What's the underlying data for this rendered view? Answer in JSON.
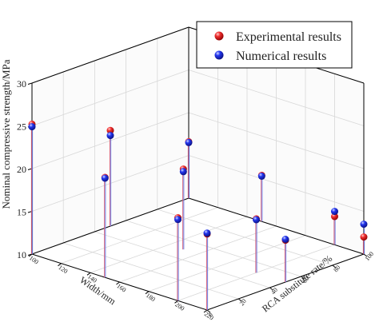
{
  "chart_data": {
    "type": "scatter",
    "zlabel": "Nominal compressive strength/MPa",
    "xlabel": "Width/mm",
    "ylabel": "RCA substitute rate/%",
    "zlim": [
      10,
      30
    ],
    "z_ticks": [
      "10",
      "15",
      "20",
      "25",
      "30"
    ],
    "x_ticks": [
      "100",
      "120",
      "140",
      "160",
      "180",
      "200",
      "220"
    ],
    "y_ticks": [
      "0",
      "20",
      "40",
      "60",
      "80",
      "100"
    ],
    "grid": true,
    "legend_position": "top-right",
    "colors": {
      "experimental": "#e02020",
      "numerical": "#1a2ee0",
      "stem_experimental": "#d4607a",
      "stem_numerical": "#6f82e6"
    },
    "series": [
      {
        "name": "Experimental results",
        "points": [
          {
            "width": 100,
            "rate": 100,
            "strength": 16.6
          },
          {
            "width": 100,
            "rate": 50,
            "strength": 21.2
          },
          {
            "width": 100,
            "rate": 0,
            "strength": 25.2
          },
          {
            "width": 150,
            "rate": 100,
            "strength": 15.4
          },
          {
            "width": 150,
            "rate": 50,
            "strength": 19.4
          },
          {
            "width": 150,
            "rate": 0,
            "strength": 21.7
          },
          {
            "width": 200,
            "rate": 100,
            "strength": 13.3
          },
          {
            "width": 200,
            "rate": 50,
            "strength": 16.3
          },
          {
            "width": 200,
            "rate": 0,
            "strength": 19.7
          },
          {
            "width": 220,
            "rate": 100,
            "strength": 12.0
          },
          {
            "width": 220,
            "rate": 50,
            "strength": 14.9
          },
          {
            "width": 220,
            "rate": 0,
            "strength": 18.9
          }
        ]
      },
      {
        "name": "Numerical results",
        "points": [
          {
            "width": 100,
            "rate": 100,
            "strength": 16.5
          },
          {
            "width": 100,
            "rate": 50,
            "strength": 20.6
          },
          {
            "width": 100,
            "rate": 0,
            "strength": 24.9
          },
          {
            "width": 150,
            "rate": 100,
            "strength": 15.3
          },
          {
            "width": 150,
            "rate": 50,
            "strength": 19.1
          },
          {
            "width": 150,
            "rate": 0,
            "strength": 21.6
          },
          {
            "width": 200,
            "rate": 100,
            "strength": 13.9
          },
          {
            "width": 200,
            "rate": 50,
            "strength": 16.2
          },
          {
            "width": 200,
            "rate": 0,
            "strength": 19.5
          },
          {
            "width": 220,
            "rate": 100,
            "strength": 13.5
          },
          {
            "width": 220,
            "rate": 50,
            "strength": 15.0
          },
          {
            "width": 220,
            "rate": 0,
            "strength": 19.0
          }
        ]
      }
    ]
  }
}
